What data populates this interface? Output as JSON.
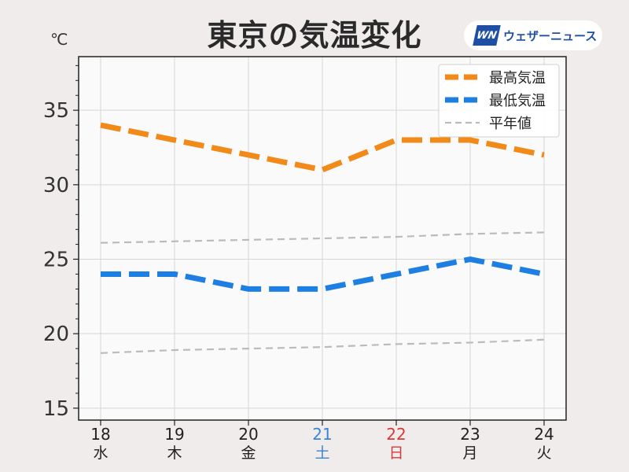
{
  "title": "東京の気温変化",
  "unit": "℃",
  "logo": {
    "mark": "WN",
    "text": "ウェザーニュース"
  },
  "colors": {
    "high": "#f28a1a",
    "low": "#1e7fe3",
    "normal": "#bbbbbb",
    "saturday": "#3a86d4",
    "sunday": "#d63a3a",
    "weekday": "#222222"
  },
  "chart_data": {
    "type": "line",
    "x": [
      "18",
      "19",
      "20",
      "21",
      "22",
      "23",
      "24"
    ],
    "x_sublabels": [
      "水",
      "木",
      "金",
      "土",
      "日",
      "月",
      "火"
    ],
    "ylim": [
      14.2,
      38.6
    ],
    "yticks": [
      15,
      20,
      25,
      30,
      35
    ],
    "grid": true,
    "legend": "top-right",
    "series": [
      {
        "name": "最高気温",
        "values": [
          34,
          33,
          32,
          31,
          33,
          33,
          32
        ],
        "style": "dashed-thick",
        "color": "#f28a1a"
      },
      {
        "name": "最低気温",
        "values": [
          24,
          24,
          23,
          23,
          24,
          25,
          24
        ],
        "style": "dashed-thick",
        "color": "#1e7fe3"
      },
      {
        "name": "平年値",
        "values": [
          26.1,
          26.2,
          26.3,
          26.4,
          26.5,
          26.7,
          26.8
        ],
        "style": "dashed-thin",
        "color": "#bbbbbb"
      },
      {
        "values": [
          18.7,
          18.9,
          19.0,
          19.1,
          19.3,
          19.4,
          19.6
        ],
        "style": "dashed-thin",
        "color": "#bbbbbb"
      }
    ]
  }
}
